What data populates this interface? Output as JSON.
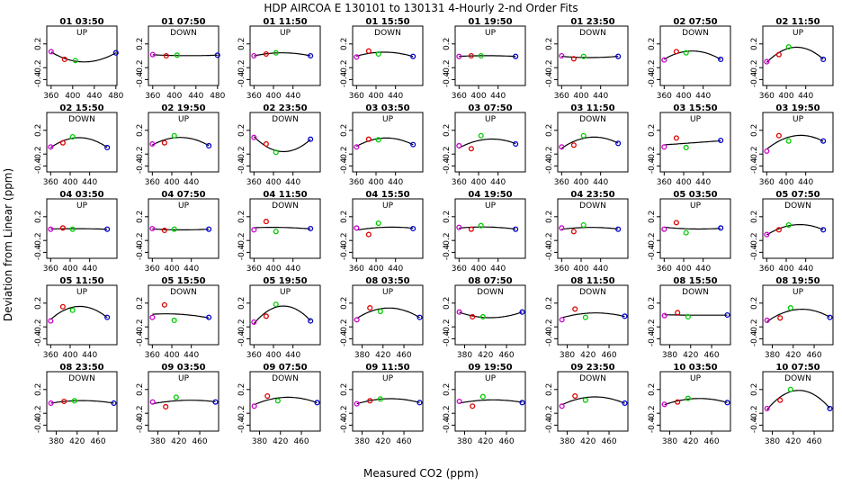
{
  "figure": {
    "title": "HDP   AIRCOA E   130101 to 130131   4-Hourly 2-nd Order Fits",
    "xlabel": "Measured CO2 (ppm)",
    "ylabel": "Deviation from Linear (ppm)"
  },
  "chart_data": {
    "type": "scatter",
    "ylim": [
      -0.5,
      0.5
    ],
    "yticks": [
      "0.2",
      "-0.2",
      "-0.4"
    ],
    "yticks_values": [
      0.2,
      -0.2,
      -0.4
    ],
    "point_colors": [
      "#cc00cc",
      "#dd0000",
      "#00cc00",
      "#0000cc"
    ],
    "curve_color": "#000000",
    "x_axis_variants": [
      {
        "xlim": [
          352,
          482
        ],
        "ticks": [
          "360",
          "400",
          "440",
          "480"
        ],
        "tick_values": [
          360,
          400,
          440,
          480
        ]
      },
      {
        "xlim": [
          352,
          496
        ],
        "ticks": [
          "360",
          "400",
          "440"
        ],
        "tick_values": [
          360,
          400,
          440
        ]
      },
      {
        "xlim": [
          362,
          496
        ],
        "ticks": [
          "380",
          "420",
          "460"
        ],
        "tick_values": [
          380,
          420,
          460
        ]
      }
    ],
    "panels": [
      {
        "title": "01 03:50",
        "dir": "UP",
        "ax": 0,
        "x": [
          360,
          385,
          405,
          480
        ],
        "y": [
          0.07,
          -0.06,
          -0.08,
          0.05
        ]
      },
      {
        "title": "01 07:50",
        "dir": "DOWN",
        "ax": 0,
        "x": [
          360,
          385,
          405,
          480
        ],
        "y": [
          0.02,
          0.0,
          0.01,
          0.01
        ]
      },
      {
        "title": "01 11:50",
        "dir": "UP",
        "ax": 1,
        "x": [
          360,
          385,
          405,
          476
        ],
        "y": [
          0.0,
          0.03,
          0.05,
          0.0
        ]
      },
      {
        "title": "01 15:50",
        "dir": "DOWN",
        "ax": 1,
        "x": [
          360,
          385,
          405,
          476
        ],
        "y": [
          -0.02,
          0.08,
          0.03,
          -0.01
        ]
      },
      {
        "title": "01 19:50",
        "dir": "UP",
        "ax": 1,
        "x": [
          360,
          385,
          405,
          476
        ],
        "y": [
          -0.01,
          0.0,
          0.0,
          -0.01
        ]
      },
      {
        "title": "01 23:50",
        "dir": "DOWN",
        "ax": 1,
        "x": [
          360,
          385,
          405,
          476
        ],
        "y": [
          0.0,
          -0.05,
          -0.01,
          -0.01
        ]
      },
      {
        "title": "02 07:50",
        "dir": "DOWN",
        "ax": 1,
        "x": [
          360,
          385,
          405,
          476
        ],
        "y": [
          -0.07,
          0.07,
          0.05,
          -0.06
        ]
      },
      {
        "title": "02 11:50",
        "dir": "UP",
        "ax": 1,
        "x": [
          360,
          385,
          405,
          476
        ],
        "y": [
          -0.1,
          0.02,
          0.15,
          -0.06
        ]
      },
      {
        "title": "02 15:50",
        "dir": "DOWN",
        "ax": 1,
        "x": [
          360,
          385,
          405,
          476
        ],
        "y": [
          -0.08,
          -0.01,
          0.09,
          -0.09
        ]
      },
      {
        "title": "02 19:50",
        "dir": "UP",
        "ax": 1,
        "x": [
          360,
          385,
          405,
          476
        ],
        "y": [
          -0.03,
          -0.01,
          0.11,
          -0.06
        ]
      },
      {
        "title": "02 23:50",
        "dir": "DOWN",
        "ax": 1,
        "x": [
          360,
          385,
          405,
          476
        ],
        "y": [
          0.08,
          -0.03,
          -0.17,
          0.05
        ]
      },
      {
        "title": "03 03:50",
        "dir": "UP",
        "ax": 1,
        "x": [
          360,
          385,
          405,
          476
        ],
        "y": [
          -0.08,
          0.05,
          0.04,
          -0.04
        ]
      },
      {
        "title": "03 07:50",
        "dir": "UP",
        "ax": 1,
        "x": [
          360,
          385,
          405,
          476
        ],
        "y": [
          -0.06,
          -0.11,
          0.11,
          -0.03
        ]
      },
      {
        "title": "03 11:50",
        "dir": "DOWN",
        "ax": 1,
        "x": [
          360,
          385,
          405,
          476
        ],
        "y": [
          -0.08,
          -0.05,
          0.11,
          -0.02
        ]
      },
      {
        "title": "03 15:50",
        "dir": "UP",
        "ax": 1,
        "x": [
          360,
          385,
          405,
          476
        ],
        "y": [
          -0.08,
          0.07,
          -0.09,
          0.03
        ]
      },
      {
        "title": "03 19:50",
        "dir": "UP",
        "ax": 1,
        "x": [
          360,
          385,
          405,
          476
        ],
        "y": [
          -0.15,
          0.11,
          0.02,
          0.02
        ]
      },
      {
        "title": "04 03:50",
        "dir": "UP",
        "ax": 1,
        "x": [
          360,
          385,
          405,
          476
        ],
        "y": [
          -0.01,
          0.01,
          -0.01,
          -0.01
        ]
      },
      {
        "title": "04 07:50",
        "dir": "UP",
        "ax": 1,
        "x": [
          360,
          385,
          405,
          476
        ],
        "y": [
          0.0,
          -0.03,
          -0.01,
          -0.01
        ]
      },
      {
        "title": "04 11:50",
        "dir": "DOWN",
        "ax": 1,
        "x": [
          360,
          385,
          405,
          476
        ],
        "y": [
          -0.02,
          0.12,
          -0.05,
          0.0
        ]
      },
      {
        "title": "04 15:50",
        "dir": "UP",
        "ax": 1,
        "x": [
          360,
          385,
          405,
          476
        ],
        "y": [
          0.01,
          -0.1,
          0.09,
          0.0
        ]
      },
      {
        "title": "04 19:50",
        "dir": "UP",
        "ax": 1,
        "x": [
          360,
          385,
          405,
          476
        ],
        "y": [
          0.02,
          -0.01,
          0.05,
          -0.01
        ]
      },
      {
        "title": "04 23:50",
        "dir": "DOWN",
        "ax": 1,
        "x": [
          360,
          385,
          405,
          476
        ],
        "y": [
          0.01,
          -0.05,
          0.06,
          -0.01
        ]
      },
      {
        "title": "05 03:50",
        "dir": "UP",
        "ax": 1,
        "x": [
          360,
          385,
          405,
          476
        ],
        "y": [
          -0.01,
          0.1,
          -0.07,
          0.01
        ]
      },
      {
        "title": "05 07:50",
        "dir": "DOWN",
        "ax": 1,
        "x": [
          360,
          385,
          405,
          476
        ],
        "y": [
          -0.1,
          -0.02,
          0.06,
          -0.02
        ]
      },
      {
        "title": "05 11:50",
        "dir": "UP",
        "ax": 1,
        "x": [
          360,
          385,
          405,
          476
        ],
        "y": [
          -0.1,
          0.14,
          0.08,
          -0.04
        ]
      },
      {
        "title": "05 15:50",
        "dir": "DOWN",
        "ax": 1,
        "x": [
          360,
          385,
          405,
          476
        ],
        "y": [
          -0.04,
          0.17,
          -0.09,
          -0.04
        ]
      },
      {
        "title": "05 19:50",
        "dir": "UP",
        "ax": 1,
        "x": [
          360,
          385,
          405,
          476
        ],
        "y": [
          -0.12,
          -0.02,
          0.18,
          -0.1
        ]
      },
      {
        "title": "08 03:50",
        "dir": "UP",
        "ax": 2,
        "x": [
          370,
          395,
          415,
          490
        ],
        "y": [
          -0.08,
          0.12,
          0.06,
          -0.04
        ]
      },
      {
        "title": "08 07:50",
        "dir": "DOWN",
        "ax": 2,
        "x": [
          370,
          395,
          415,
          490
        ],
        "y": [
          0.05,
          -0.03,
          -0.03,
          0.05
        ]
      },
      {
        "title": "08 11:50",
        "dir": "DOWN",
        "ax": 2,
        "x": [
          370,
          395,
          415,
          490
        ],
        "y": [
          -0.08,
          0.1,
          -0.04,
          -0.02
        ]
      },
      {
        "title": "08 15:50",
        "dir": "DOWN",
        "ax": 2,
        "x": [
          370,
          395,
          415,
          490
        ],
        "y": [
          -0.01,
          0.04,
          -0.03,
          0.0
        ]
      },
      {
        "title": "08 19:50",
        "dir": "UP",
        "ax": 2,
        "x": [
          370,
          395,
          415,
          490
        ],
        "y": [
          -0.09,
          -0.05,
          0.12,
          -0.04
        ]
      },
      {
        "title": "08 23:50",
        "dir": "DOWN",
        "ax": 2,
        "x": [
          370,
          395,
          415,
          490
        ],
        "y": [
          -0.03,
          0.0,
          0.01,
          -0.03
        ]
      },
      {
        "title": "09 03:50",
        "dir": "UP",
        "ax": 2,
        "x": [
          370,
          395,
          415,
          490
        ],
        "y": [
          -0.01,
          -0.09,
          0.07,
          -0.01
        ]
      },
      {
        "title": "09 07:50",
        "dir": "DOWN",
        "ax": 2,
        "x": [
          370,
          395,
          415,
          490
        ],
        "y": [
          -0.08,
          0.09,
          0.01,
          -0.02
        ]
      },
      {
        "title": "09 11:50",
        "dir": "UP",
        "ax": 2,
        "x": [
          370,
          395,
          415,
          490
        ],
        "y": [
          -0.04,
          0.01,
          0.04,
          -0.02
        ]
      },
      {
        "title": "09 19:50",
        "dir": "UP",
        "ax": 2,
        "x": [
          370,
          395,
          415,
          490
        ],
        "y": [
          0.0,
          -0.08,
          0.08,
          -0.02
        ]
      },
      {
        "title": "09 23:50",
        "dir": "DOWN",
        "ax": 2,
        "x": [
          370,
          395,
          415,
          490
        ],
        "y": [
          -0.08,
          0.09,
          0.02,
          -0.03
        ]
      },
      {
        "title": "10 03:50",
        "dir": "UP",
        "ax": 2,
        "x": [
          370,
          395,
          415,
          490
        ],
        "y": [
          -0.05,
          -0.01,
          0.05,
          -0.02
        ]
      },
      {
        "title": "10 07:50",
        "dir": "DOWN",
        "ax": 2,
        "x": [
          370,
          395,
          415,
          490
        ],
        "y": [
          -0.12,
          0.02,
          0.2,
          -0.12
        ]
      }
    ]
  }
}
